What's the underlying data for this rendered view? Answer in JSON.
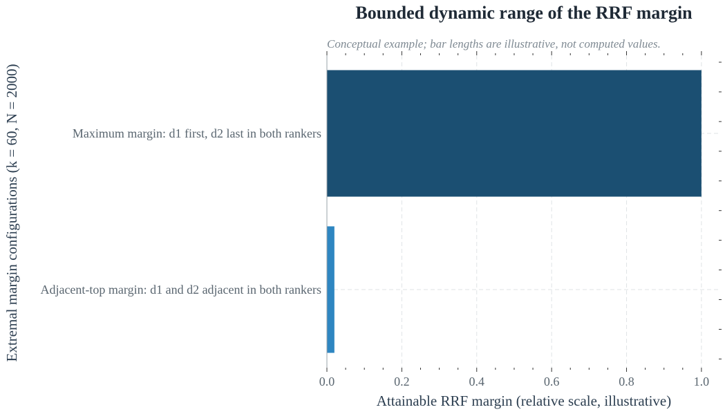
{
  "chart_data": {
    "type": "bar",
    "orientation": "horizontal",
    "title": "Bounded dynamic range of the RRF margin",
    "subtitle": "Conceptual example; bar lengths are illustrative, not computed values.",
    "xlabel": "Attainable RRF margin (relative scale, illustrative)",
    "ylabel": "Extremal margin configurations (k = 60, N = 2000)",
    "categories": [
      "Maximum margin: d1 first, d2 last in both rankers",
      "Adjacent-top margin: d1 and d2 adjacent in both rankers"
    ],
    "values": [
      1.0,
      0.02
    ],
    "colors": [
      "#1b4f72",
      "#2e86c1"
    ],
    "xlim": [
      0,
      1.05
    ],
    "xticks": [
      0.0,
      0.2,
      0.4,
      0.6,
      0.8,
      1.0
    ],
    "xtick_labels": [
      "0.0",
      "0.2",
      "0.4",
      "0.6",
      "0.8",
      "1.0"
    ],
    "grid": true,
    "legend": "none"
  }
}
